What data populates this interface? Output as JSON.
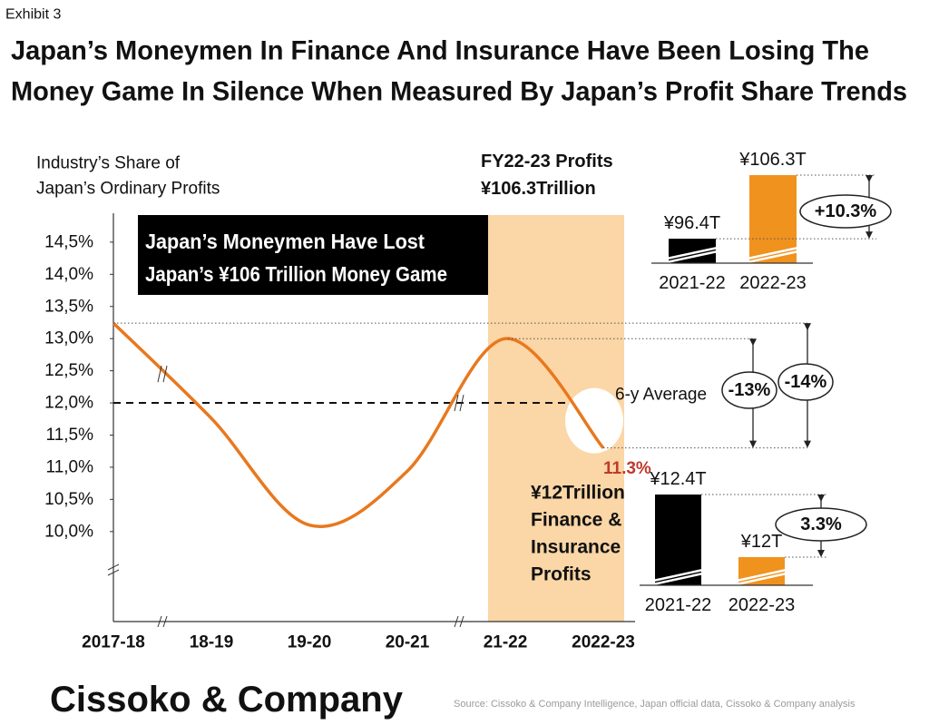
{
  "exhibit": "Exhibit 3",
  "title": [
    "Japan’s Moneymen In Finance And Insurance Have Been Losing The",
    "Money Game In Silence When Measured By Japan’s Profit Share Trends"
  ],
  "chart_data": [
    {
      "type": "line",
      "y_label": [
        "Industry’s Share of",
        "Japan’s Ordinary Profits"
      ],
      "categories": [
        "2017-18",
        "18-19",
        "19-20",
        "20-21",
        "21-22",
        "2022-23"
      ],
      "series": [
        {
          "color": "#e8781e",
          "values": [
            13.24,
            11.76,
            10.1,
            10.94,
            13.0,
            11.3
          ],
          "value_labels": [
            null,
            null,
            null,
            null,
            null,
            "11.3%"
          ]
        }
      ],
      "ylim": [
        8.6,
        14.95
      ],
      "yticks": [
        {
          "value": 10.0,
          "label": "10,0%"
        },
        {
          "value": 10.5,
          "label": "10,5%"
        },
        {
          "value": 11.0,
          "label": "11,0%"
        },
        {
          "value": 11.5,
          "label": "11,5%"
        },
        {
          "value": 12.0,
          "label": "12,0%"
        },
        {
          "value": 12.5,
          "label": "12,5%"
        },
        {
          "value": 13.0,
          "label": "13,0%"
        },
        {
          "value": 13.5,
          "label": "13,5%"
        },
        {
          "value": 14.0,
          "label": "14,0%"
        },
        {
          "value": 14.5,
          "label": "14,5%"
        }
      ],
      "reference_line": {
        "value": 12.0,
        "label": "6-y Average"
      },
      "callout": [
        "Japan’s Moneymen Have Lost",
        "Japan’s ¥106 Trillion Money Game"
      ],
      "profits_label": [
        "FY22-23 Profits",
        "¥106.3Trillion"
      ],
      "finance_label": [
        "¥12Trillion",
        "Finance &",
        "Insurance",
        "Profits"
      ],
      "change_labels": [
        "-13%",
        "-14%"
      ]
    },
    {
      "type": "bar",
      "categories": [
        "2021-22",
        "2022-23"
      ],
      "values": [
        96.4,
        106.3
      ],
      "value_labels": [
        "¥96.4T",
        "¥106.3T"
      ],
      "colors": [
        "#000000",
        "#f0921e"
      ],
      "ylim": [
        92.6,
        106.3
      ],
      "change_label": "+10.3%"
    },
    {
      "type": "bar",
      "categories": [
        "2021-22",
        "2022-23"
      ],
      "values": [
        12.4,
        12
      ],
      "value_labels": [
        "¥12.4T",
        "¥12T"
      ],
      "colors": [
        "#000000",
        "#f0921e"
      ],
      "ylim": [
        11.82,
        12.4
      ],
      "change_label": "3.3%"
    }
  ],
  "brand": "Cissoko & Company",
  "source": "Source: Cissoko & Company Intelligence, Japan official data, Cissoko & Company analysis"
}
